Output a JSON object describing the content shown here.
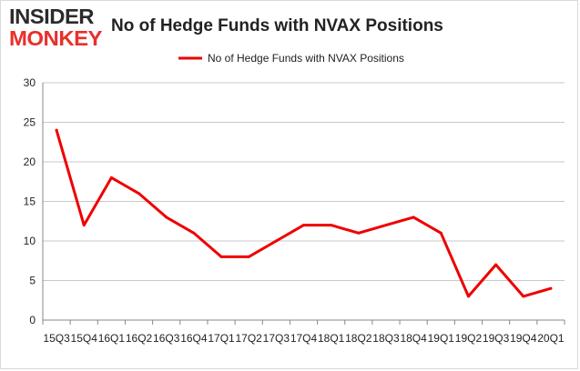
{
  "logo": {
    "line1": "INSIDER",
    "line2": "MONKEY"
  },
  "colors": {
    "series": "#ee0000",
    "logo_dark": "#2b2b2b",
    "logo_red": "#e8302d",
    "grid": "#c8c8c8",
    "axis": "#888888"
  },
  "chart_data": {
    "type": "line",
    "title": "No of Hedge Funds with NVAX Positions",
    "xlabel": "",
    "ylabel": "",
    "ylim": [
      0,
      30
    ],
    "yticks": [
      0,
      5,
      10,
      15,
      20,
      25,
      30
    ],
    "grid": true,
    "legend_position": "top",
    "categories": [
      "15Q3",
      "15Q4",
      "16Q1",
      "16Q2",
      "16Q3",
      "16Q4",
      "17Q1",
      "17Q2",
      "17Q3",
      "17Q4",
      "18Q1",
      "18Q2",
      "18Q3",
      "18Q4",
      "19Q1",
      "19Q2",
      "19Q3",
      "19Q4",
      "20Q1"
    ],
    "series": [
      {
        "name": "No of Hedge Funds with NVAX Positions",
        "values": [
          24,
          12,
          18,
          16,
          13,
          11,
          8,
          8,
          10,
          12,
          12,
          11,
          12,
          13,
          11,
          3,
          7,
          3,
          4
        ]
      }
    ]
  }
}
